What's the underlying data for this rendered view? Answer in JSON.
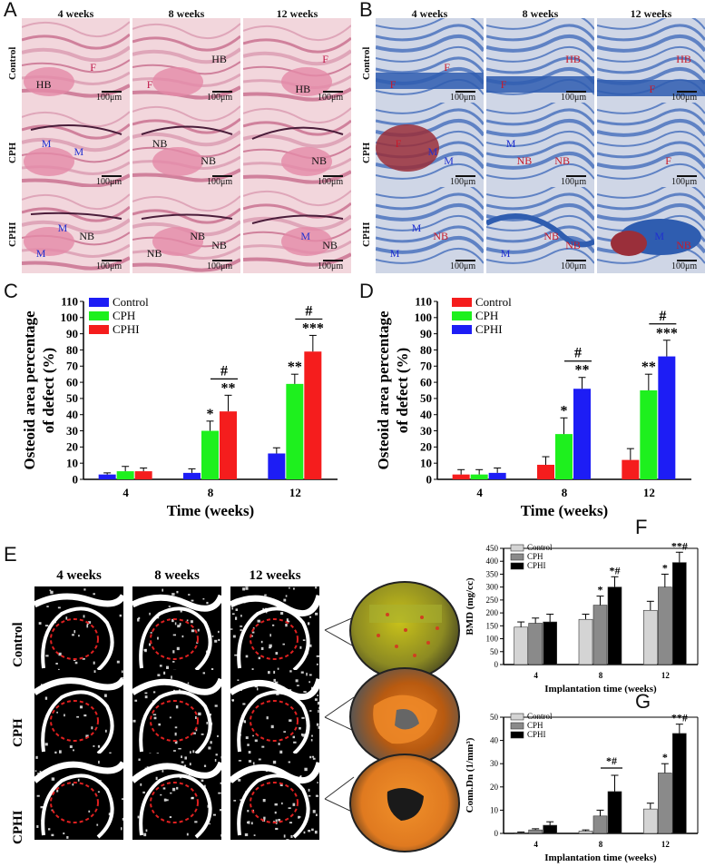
{
  "panels": {
    "A": "A",
    "B": "B",
    "C": "C",
    "D": "D",
    "E": "E",
    "F": "F",
    "G": "G"
  },
  "histology": {
    "columns": [
      "4 weeks",
      "8 weeks",
      "12 weeks"
    ],
    "rows": [
      "Control",
      "CPH",
      "CPHI"
    ],
    "scale": "100μm",
    "panelA_labels": [
      [
        "F",
        "HB",
        "F",
        "HB",
        "F",
        "HB"
      ],
      [
        "M",
        "M",
        "NB",
        "NB",
        "NB"
      ],
      [
        "M",
        "M",
        "NB",
        "NB",
        "NB",
        "NB",
        "M",
        "NB"
      ]
    ],
    "panelB_labels": [
      [
        "F",
        "F",
        "F",
        "HB",
        "HB",
        "F"
      ],
      [
        "M",
        "F",
        "M",
        "M",
        "NB",
        "NB",
        "F"
      ],
      [
        "M",
        "M",
        "NB",
        "M",
        "NB",
        "NB",
        "M",
        "NB"
      ]
    ],
    "colors": {
      "he_bg": "#f2d6dc",
      "he_tissue": "#e48aa8",
      "masson_bg": "#cfd6e6",
      "masson_blue": "#2f5db0",
      "masson_red": "#9a2f3a"
    }
  },
  "microct": {
    "columns": [
      "4 weeks",
      "8 weeks",
      "12 weeks"
    ],
    "rows": [
      "Control",
      "CPH",
      "CPHI"
    ]
  },
  "chart_data": [
    {
      "panel": "C",
      "type": "bar",
      "categories": [
        "4",
        "8",
        "12"
      ],
      "series": [
        {
          "name": "Control",
          "color": "#1d1df5",
          "values": [
            3,
            4,
            16
          ],
          "errors": [
            1,
            2.5,
            3.5
          ]
        },
        {
          "name": "CPH",
          "color": "#1ef01e",
          "values": [
            5,
            30,
            59
          ],
          "errors": [
            3,
            6,
            6
          ]
        },
        {
          "name": "CPHI",
          "color": "#f51d1d",
          "values": [
            5,
            42,
            79
          ],
          "errors": [
            2,
            10,
            10
          ]
        }
      ],
      "sig": [
        [
          [
            "",
            "",
            ""
          ],
          [
            "",
            "*",
            "**"
          ],
          [
            "",
            "**",
            "***"
          ]
        ]
      ],
      "brackets": [
        {
          "label": "#",
          "cat": "8"
        },
        {
          "label": "#",
          "cat": "12"
        }
      ],
      "xlabel": "Time (weeks)",
      "ylabel": "Osteoid area percentage of defect (%)",
      "ylabel_lines": [
        "Osteoid area percentage",
        "of defect (%)"
      ],
      "ylim": [
        0,
        110
      ],
      "yticks": [
        0,
        10,
        20,
        30,
        40,
        50,
        60,
        70,
        80,
        90,
        100,
        110
      ],
      "legend": "top-left"
    },
    {
      "panel": "D",
      "type": "bar",
      "categories": [
        "4",
        "8",
        "12"
      ],
      "series": [
        {
          "name": "Control",
          "color": "#f51d1d",
          "values": [
            3,
            9,
            12
          ],
          "errors": [
            3,
            5,
            7
          ]
        },
        {
          "name": "CPH",
          "color": "#1ef01e",
          "values": [
            3,
            28,
            55
          ],
          "errors": [
            3,
            10,
            10
          ]
        },
        {
          "name": "CPHI",
          "color": "#1d1df5",
          "values": [
            4,
            56,
            76
          ],
          "errors": [
            3,
            7,
            10
          ]
        }
      ],
      "sig": [
        [
          [
            "",
            "",
            ""
          ],
          [
            "",
            "*",
            "**"
          ],
          [
            "",
            "**",
            "***"
          ]
        ]
      ],
      "brackets": [
        {
          "label": "#",
          "cat": "8"
        },
        {
          "label": "#",
          "cat": "12"
        }
      ],
      "xlabel": "Time (weeks)",
      "ylabel": "Osteoid area percentage of defect (%)",
      "ylabel_lines": [
        "Osteoid area percentage",
        "of defect (%)"
      ],
      "ylim": [
        0,
        110
      ],
      "yticks": [
        0,
        10,
        20,
        30,
        40,
        50,
        60,
        70,
        80,
        90,
        100,
        110
      ],
      "legend": "top-left"
    },
    {
      "panel": "F",
      "type": "bar",
      "categories": [
        "4",
        "8",
        "12"
      ],
      "series": [
        {
          "name": "Control",
          "color": "#d4d4d4",
          "values": [
            145,
            175,
            210
          ],
          "errors": [
            20,
            20,
            35
          ]
        },
        {
          "name": "CPH",
          "color": "#8a8a8a",
          "values": [
            160,
            230,
            300
          ],
          "errors": [
            20,
            35,
            50
          ]
        },
        {
          "name": "CPHI",
          "color": "#000000",
          "values": [
            165,
            300,
            395
          ],
          "errors": [
            30,
            40,
            40
          ]
        }
      ],
      "sig": [
        [
          [
            "",
            "",
            ""
          ],
          [
            "",
            "*",
            "*#"
          ],
          [
            "",
            "*",
            "**#"
          ]
        ]
      ],
      "brackets": [],
      "xlabel": "Implantation time (weeks)",
      "ylabel": "BMD (mg/cc)",
      "ylim": [
        0,
        450
      ],
      "yticks": [
        0,
        50,
        100,
        150,
        200,
        250,
        300,
        350,
        400,
        450
      ],
      "legend": "top-left"
    },
    {
      "panel": "G",
      "type": "bar",
      "categories": [
        "4",
        "8",
        "12"
      ],
      "series": [
        {
          "name": "Control",
          "color": "#d4d4d4",
          "values": [
            0.3,
            1,
            10.5
          ],
          "errors": [
            0.3,
            0.5,
            2.5
          ]
        },
        {
          "name": "CPH",
          "color": "#8a8a8a",
          "values": [
            1.5,
            7.5,
            26
          ],
          "errors": [
            0.5,
            2.5,
            4
          ]
        },
        {
          "name": "CPHI",
          "color": "#000000",
          "values": [
            3.5,
            18,
            43
          ],
          "errors": [
            1.5,
            7,
            4
          ]
        }
      ],
      "sig": [
        [
          [
            "",
            "",
            ""
          ],
          [
            "",
            "",
            ""
          ],
          [
            "",
            "*",
            "**#"
          ]
        ]
      ],
      "brackets": [
        {
          "label": "*#",
          "cat": "8"
        }
      ],
      "xlabel": "Implantation time (weeks)",
      "ylabel": "Conn.Dn (1/mm³)",
      "ylim": [
        0,
        50
      ],
      "yticks": [
        0,
        10,
        20,
        30,
        40,
        50
      ],
      "legend": "top-left"
    }
  ]
}
